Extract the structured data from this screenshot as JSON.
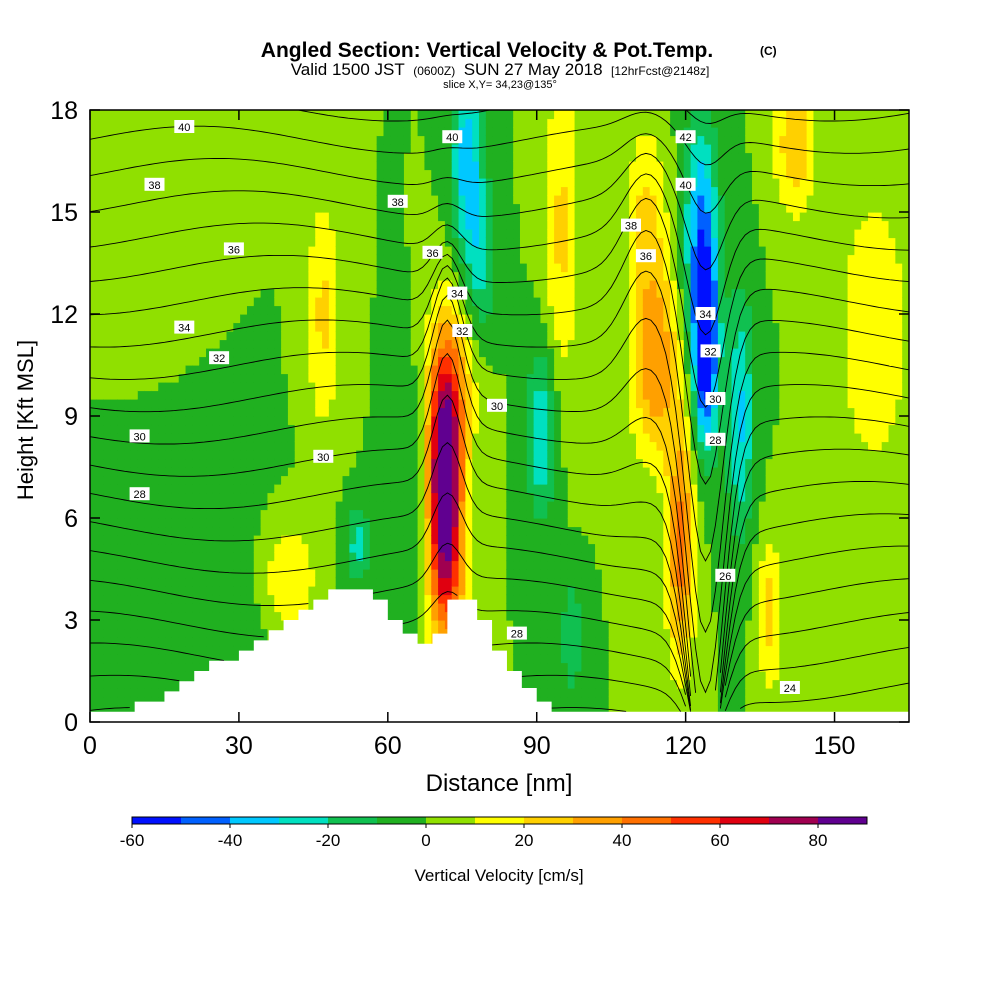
{
  "header": {
    "title": "Angled Section: Vertical Velocity & Pot.Temp.",
    "title_mark": "(C)",
    "valid_a": "Valid 1500 JST",
    "valid_b": "(0600Z)",
    "valid_c": "SUN 27 May 2018",
    "valid_d": "[12hrFcst@2148z]",
    "slice": "slice X,Y= 34,23@135°"
  },
  "chart_data": {
    "type": "heatmap",
    "xlabel": "Distance [nm]",
    "ylabel": "Height [Kft MSL]",
    "xlim": [
      0,
      165
    ],
    "ylim": [
      0,
      18
    ],
    "x_ticks": [
      0,
      30,
      60,
      90,
      120,
      150
    ],
    "y_ticks": [
      0,
      3,
      6,
      9,
      12,
      15,
      18
    ],
    "colorbar": {
      "label": "Vertical Velocity [cm/s]",
      "ticks": [
        -60,
        -40,
        -20,
        0,
        20,
        40,
        60,
        80
      ],
      "levels": [
        -60,
        -50,
        -40,
        -30,
        -20,
        -10,
        0,
        10,
        20,
        30,
        40,
        50,
        60,
        70,
        80,
        90
      ],
      "colors": [
        "#0010ff",
        "#0060ff",
        "#00c8ff",
        "#00e0c0",
        "#10c050",
        "#20b020",
        "#90e000",
        "#ffff00",
        "#ffd000",
        "#ffa000",
        "#ff7000",
        "#ff3000",
        "#e00010",
        "#a00050",
        "#600090"
      ]
    },
    "fields": {
      "background_velocity": 0,
      "features": [
        {
          "x": 71.5,
          "y": 7.0,
          "sx": 2.3,
          "sy": 2.2,
          "value": 95
        },
        {
          "x": 72.5,
          "y": 10.0,
          "sx": 3.5,
          "sy": 2.0,
          "value": 32
        },
        {
          "x": 72.0,
          "y": 3.8,
          "sx": 3.0,
          "sy": 1.6,
          "value": 30
        },
        {
          "x": 119.0,
          "y": 5.2,
          "sx": 2.0,
          "sy": 2.5,
          "value": 44
        },
        {
          "x": 114.0,
          "y": 10.5,
          "sx": 3.5,
          "sy": 2.0,
          "value": 38
        },
        {
          "x": 112.0,
          "y": 14.8,
          "sx": 3.0,
          "sy": 2.0,
          "value": 22
        },
        {
          "x": 142.0,
          "y": 17.0,
          "sx": 3.0,
          "sy": 1.5,
          "value": 28
        },
        {
          "x": 137.0,
          "y": 3.2,
          "sx": 1.8,
          "sy": 1.6,
          "value": 24
        },
        {
          "x": 47.0,
          "y": 12.0,
          "sx": 2.5,
          "sy": 2.5,
          "value": 22
        },
        {
          "x": 158.0,
          "y": 11.5,
          "sx": 5.0,
          "sy": 3.0,
          "value": 20
        },
        {
          "x": 40.0,
          "y": 4.2,
          "sx": 4.0,
          "sy": 1.2,
          "value": 22
        },
        {
          "x": 95.0,
          "y": 14.5,
          "sx": 2.5,
          "sy": 3.5,
          "value": 22
        },
        {
          "x": 124.0,
          "y": 11.0,
          "sx": 1.8,
          "sy": 2.0,
          "value": -62
        },
        {
          "x": 123.0,
          "y": 14.5,
          "sx": 2.5,
          "sy": 2.5,
          "value": -38
        },
        {
          "x": 131.0,
          "y": 9.0,
          "sx": 2.0,
          "sy": 2.5,
          "value": -32
        },
        {
          "x": 76.0,
          "y": 16.5,
          "sx": 2.3,
          "sy": 2.3,
          "value": -36
        },
        {
          "x": 79.0,
          "y": 13.5,
          "sx": 2.0,
          "sy": 1.5,
          "value": -22
        },
        {
          "x": 91.0,
          "y": 8.5,
          "sx": 2.2,
          "sy": 1.8,
          "value": -30
        },
        {
          "x": 54.0,
          "y": 5.2,
          "sx": 1.8,
          "sy": 0.8,
          "value": -24
        },
        {
          "x": 97.0,
          "y": 2.5,
          "sx": 1.5,
          "sy": 1.2,
          "value": -20
        },
        {
          "x": 65.0,
          "y": 7.0,
          "sx": 2.5,
          "sy": 2.5,
          "value": -12
        },
        {
          "x": 20.0,
          "y": 3.0,
          "sx": 12.0,
          "sy": 3.0,
          "value": -10
        },
        {
          "x": 10.0,
          "y": 16.0,
          "sx": 8.0,
          "sy": 3.0,
          "value": 6
        }
      ]
    },
    "terrain": [
      {
        "x": 0,
        "h": 0.3
      },
      {
        "x": 9,
        "h": 0.3
      },
      {
        "x": 9,
        "h": 0.6
      },
      {
        "x": 15,
        "h": 0.6
      },
      {
        "x": 15,
        "h": 0.9
      },
      {
        "x": 18,
        "h": 0.9
      },
      {
        "x": 18,
        "h": 1.2
      },
      {
        "x": 21,
        "h": 1.2
      },
      {
        "x": 21,
        "h": 1.5
      },
      {
        "x": 24,
        "h": 1.5
      },
      {
        "x": 24,
        "h": 1.8
      },
      {
        "x": 30,
        "h": 1.8
      },
      {
        "x": 30,
        "h": 2.1
      },
      {
        "x": 33,
        "h": 2.1
      },
      {
        "x": 33,
        "h": 2.4
      },
      {
        "x": 36,
        "h": 2.4
      },
      {
        "x": 36,
        "h": 2.7
      },
      {
        "x": 39,
        "h": 2.7
      },
      {
        "x": 39,
        "h": 3.0
      },
      {
        "x": 42,
        "h": 3.0
      },
      {
        "x": 42,
        "h": 3.3
      },
      {
        "x": 45,
        "h": 3.3
      },
      {
        "x": 45,
        "h": 3.6
      },
      {
        "x": 48,
        "h": 3.6
      },
      {
        "x": 48,
        "h": 3.9
      },
      {
        "x": 57,
        "h": 3.9
      },
      {
        "x": 57,
        "h": 3.6
      },
      {
        "x": 60,
        "h": 3.6
      },
      {
        "x": 60,
        "h": 3.0
      },
      {
        "x": 63,
        "h": 3.0
      },
      {
        "x": 63,
        "h": 2.6
      },
      {
        "x": 66,
        "h": 2.6
      },
      {
        "x": 66,
        "h": 2.3
      },
      {
        "x": 69,
        "h": 2.3
      },
      {
        "x": 69,
        "h": 2.6
      },
      {
        "x": 72,
        "h": 2.6
      },
      {
        "x": 72,
        "h": 3.6
      },
      {
        "x": 78,
        "h": 3.6
      },
      {
        "x": 78,
        "h": 3.0
      },
      {
        "x": 81,
        "h": 3.0
      },
      {
        "x": 81,
        "h": 2.1
      },
      {
        "x": 84,
        "h": 2.1
      },
      {
        "x": 84,
        "h": 1.5
      },
      {
        "x": 87,
        "h": 1.5
      },
      {
        "x": 87,
        "h": 1.0
      },
      {
        "x": 90,
        "h": 1.0
      },
      {
        "x": 90,
        "h": 0.6
      },
      {
        "x": 93,
        "h": 0.6
      },
      {
        "x": 93,
        "h": 0.3
      },
      {
        "x": 165,
        "h": 0.3
      }
    ],
    "theta_contours": {
      "levels": [
        24,
        25,
        26,
        27,
        28,
        29,
        30,
        31,
        32,
        33,
        34,
        35,
        36,
        37,
        38,
        39,
        40,
        41,
        42,
        43
      ],
      "labels": [
        {
          "x": 19,
          "y": 17.5,
          "text": "40"
        },
        {
          "x": 13,
          "y": 15.8,
          "text": "38"
        },
        {
          "x": 29,
          "y": 13.9,
          "text": "36"
        },
        {
          "x": 19,
          "y": 11.6,
          "text": "34"
        },
        {
          "x": 26,
          "y": 10.7,
          "text": "32"
        },
        {
          "x": 10,
          "y": 8.4,
          "text": "30"
        },
        {
          "x": 10,
          "y": 6.7,
          "text": "28"
        },
        {
          "x": 47,
          "y": 7.8,
          "text": "30"
        },
        {
          "x": 62,
          "y": 15.3,
          "text": "38"
        },
        {
          "x": 69,
          "y": 13.8,
          "text": "36"
        },
        {
          "x": 74,
          "y": 12.6,
          "text": "34"
        },
        {
          "x": 75,
          "y": 11.5,
          "text": "32"
        },
        {
          "x": 82,
          "y": 9.3,
          "text": "30"
        },
        {
          "x": 73,
          "y": 17.2,
          "text": "40"
        },
        {
          "x": 120,
          "y": 17.2,
          "text": "42"
        },
        {
          "x": 120,
          "y": 15.8,
          "text": "40"
        },
        {
          "x": 109,
          "y": 14.6,
          "text": "38"
        },
        {
          "x": 112,
          "y": 13.7,
          "text": "36"
        },
        {
          "x": 124,
          "y": 12.0,
          "text": "34"
        },
        {
          "x": 125,
          "y": 10.9,
          "text": "32"
        },
        {
          "x": 126,
          "y": 9.5,
          "text": "30"
        },
        {
          "x": 126,
          "y": 8.3,
          "text": "28"
        },
        {
          "x": 128,
          "y": 4.3,
          "text": "26"
        },
        {
          "x": 86,
          "y": 2.6,
          "text": "28"
        },
        {
          "x": 141,
          "y": 1.0,
          "text": "24"
        }
      ]
    }
  }
}
